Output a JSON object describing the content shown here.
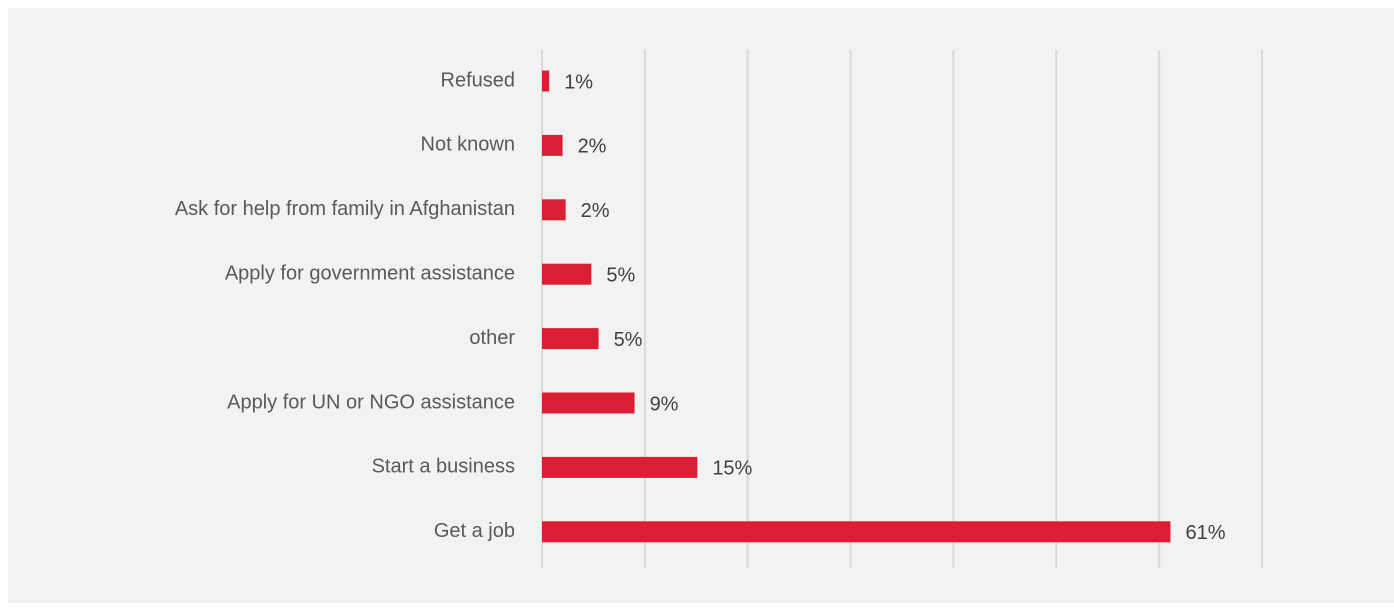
{
  "chart_data": {
    "type": "bar",
    "orientation": "horizontal",
    "categories": [
      "Refused",
      "Not known",
      "Ask for help from family in Afghanistan",
      "Apply for government assistance",
      "other",
      "Apply for UN or NGO assistance",
      "Start a business",
      "Get a job"
    ],
    "values": [
      0.7,
      2.0,
      2.3,
      4.8,
      5.5,
      9.0,
      15.1,
      61.1
    ],
    "value_labels": [
      "1%",
      "2%",
      "2%",
      "5%",
      "5%",
      "9%",
      "15%",
      "61%"
    ],
    "xlim": [
      0,
      70
    ],
    "x_gridlines": [
      0,
      10,
      20,
      30,
      40,
      50,
      60,
      70
    ],
    "grid": true,
    "legend": "none",
    "title": "",
    "xlabel": "",
    "ylabel": ""
  },
  "colors": {
    "background": "#f2f2f2",
    "bar": "#dc1e35",
    "grid": "#d9d9d9",
    "category_text": "#595959",
    "value_text": "#404040"
  }
}
